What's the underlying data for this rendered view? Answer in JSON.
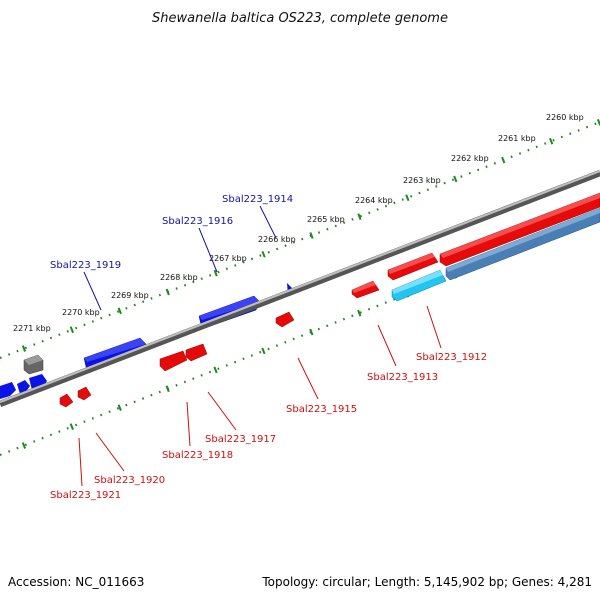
{
  "title": "Shewanella baltica OS223, complete genome",
  "footer": {
    "accession": "Accession: NC_011663",
    "info": "Topology: circular; Length: 5,145,902 bp; Genes: 4,281"
  },
  "colors": {
    "plus_gene": "#0a14e6",
    "minus_gene": "#e60a0a",
    "rna": "#22c4f2",
    "other": "#4a7fb5",
    "pseudo": "#666666",
    "backbone": "#777777",
    "ticks": "#1e8a1e",
    "plus_label": "#1414a0",
    "minus_label": "#cc1010"
  },
  "scale_labels": [
    "2260 kbp",
    "2261 kbp",
    "2262 kbp",
    "2263 kbp",
    "2264 kbp",
    "2265 kbp",
    "2266 kbp",
    "2267 kbp",
    "2268 kbp",
    "2269 kbp",
    "2270 kbp",
    "2271 kbp"
  ],
  "gene_labels": {
    "sbal223_1912": "Sbal223_1912",
    "sbal223_1913": "Sbal223_1913",
    "sbal223_1914": "Sbal223_1914",
    "sbal223_1915": "Sbal223_1915",
    "sbal223_1916": "Sbal223_1916",
    "sbal223_1917": "Sbal223_1917",
    "sbal223_1918": "Sbal223_1918",
    "sbal223_1919": "Sbal223_1919",
    "sbal223_1920": "Sbal223_1920",
    "sbal223_1921": "Sbal223_1921"
  }
}
